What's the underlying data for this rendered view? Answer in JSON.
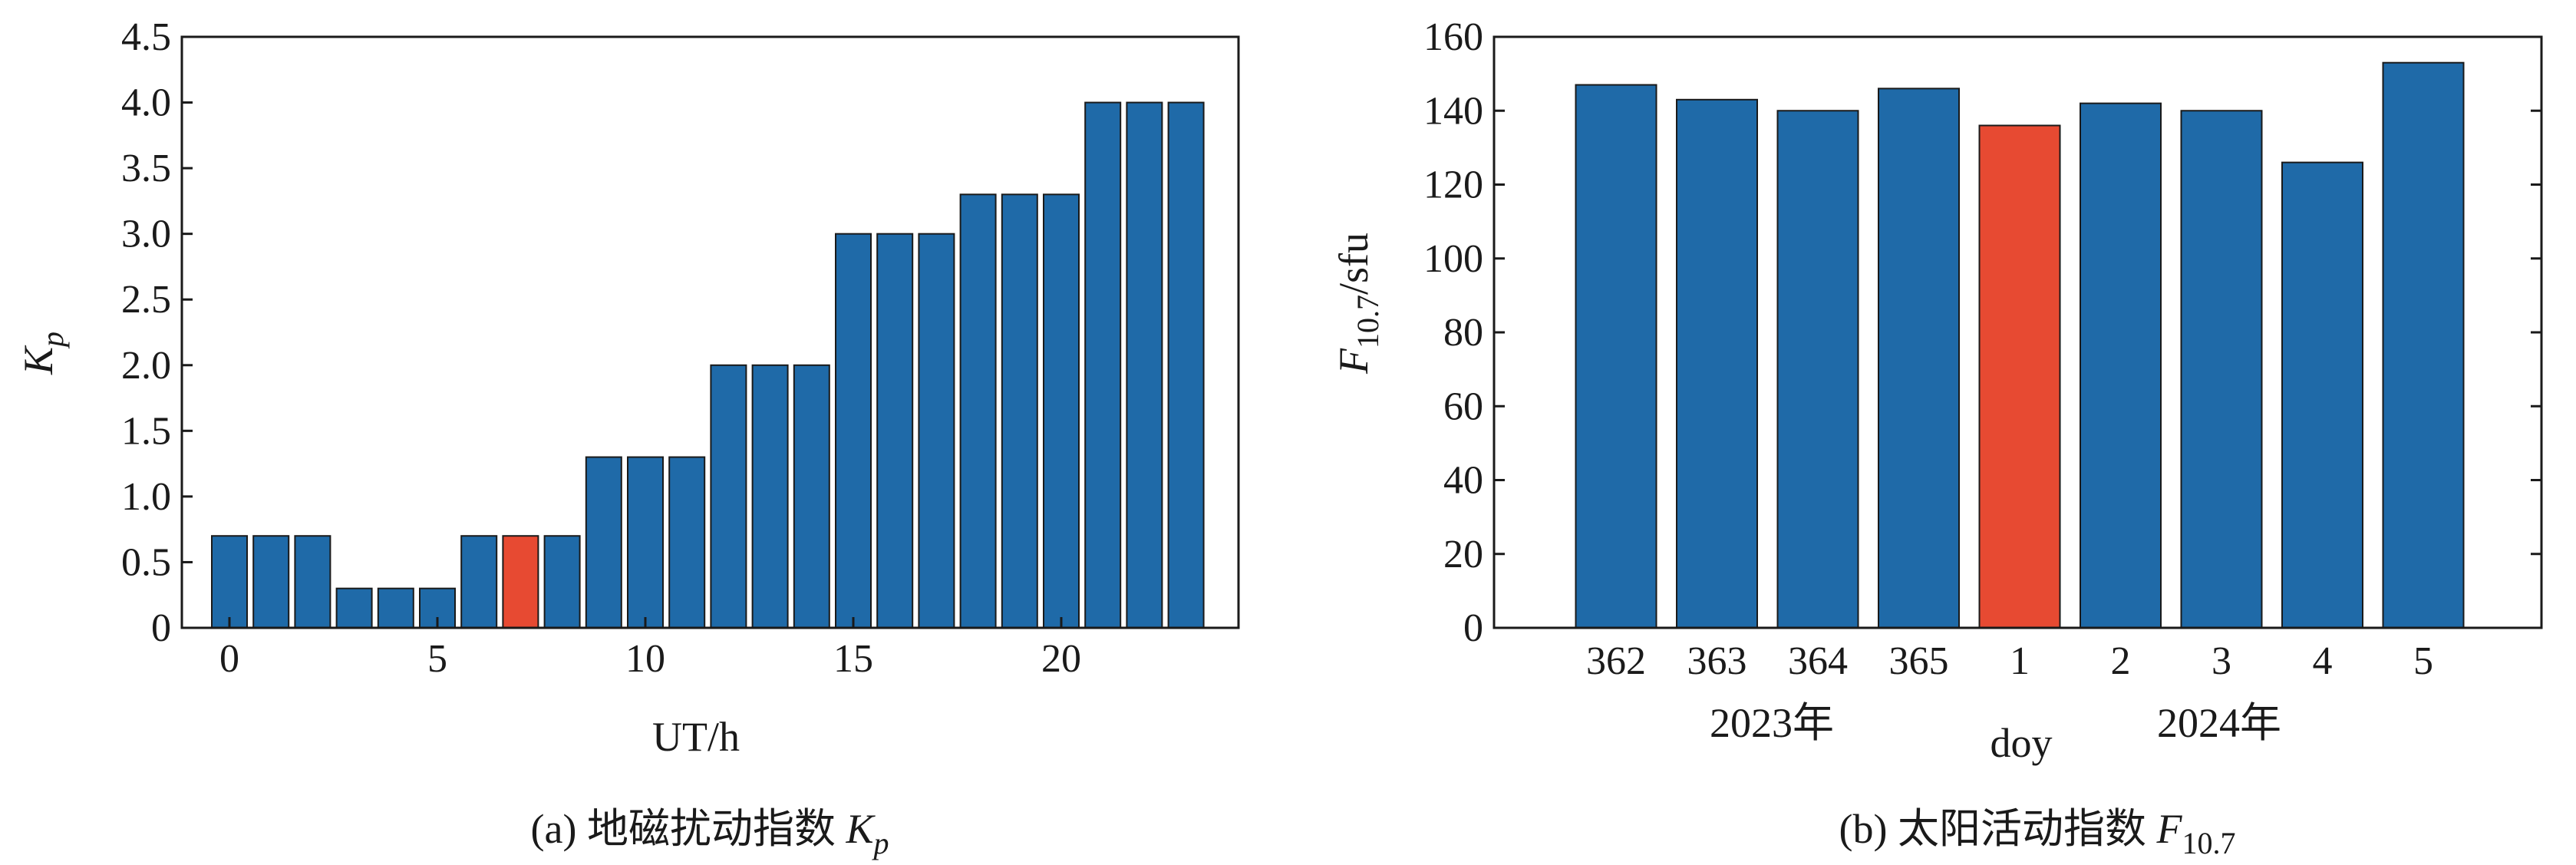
{
  "colors": {
    "bar": "#1f6aa8",
    "highlight": "#e74a32",
    "edge": "#1a1a1a"
  },
  "chart_data": [
    {
      "type": "bar",
      "caption_prefix": "(a) 地磁扰动指数 ",
      "caption_symbol": "K",
      "caption_subscript": "p",
      "ylabel_symbol": "K",
      "ylabel_subscript": "p",
      "xlabel": "UT/h",
      "x": [
        0,
        1,
        2,
        3,
        4,
        5,
        6,
        7,
        8,
        9,
        10,
        11,
        12,
        13,
        14,
        15,
        16,
        17,
        18,
        19,
        20,
        21,
        22,
        23
      ],
      "values": [
        0.7,
        0.7,
        0.7,
        0.3,
        0.3,
        0.3,
        0.7,
        0.7,
        0.7,
        1.3,
        1.3,
        1.3,
        2.0,
        2.0,
        2.0,
        3.0,
        3.0,
        3.0,
        3.3,
        3.3,
        3.3,
        4.0,
        4.0,
        4.0
      ],
      "highlight_index": 7,
      "xticks": [
        "0",
        "5",
        "10",
        "15",
        "20"
      ],
      "xtick_values": [
        0,
        5,
        10,
        15,
        20
      ],
      "yticks": [
        "0",
        "0.5",
        "1.0",
        "1.5",
        "2.0",
        "2.5",
        "3.0",
        "3.5",
        "4.0",
        "4.5"
      ],
      "ylim": [
        0,
        4.5
      ],
      "grid": false
    },
    {
      "type": "bar",
      "caption_prefix": "(b) 太阳活动指数 ",
      "caption_symbol": "F",
      "caption_subscript": "10.7",
      "ylabel_symbol": "F",
      "ylabel_subscript": "10.7",
      "ylabel_unit": "/sfu",
      "xlabel": "doy",
      "categories": [
        "362",
        "363",
        "364",
        "365",
        "1",
        "2",
        "3",
        "4",
        "5"
      ],
      "values": [
        147,
        143,
        140,
        146,
        136,
        142,
        140,
        126,
        153
      ],
      "highlight_index": 4,
      "year_labels": [
        "2023年",
        "2024年"
      ],
      "yticks": [
        "0",
        "20",
        "40",
        "60",
        "80",
        "100",
        "120",
        "140",
        "160"
      ],
      "ylim": [
        0,
        160
      ],
      "grid": false
    }
  ]
}
